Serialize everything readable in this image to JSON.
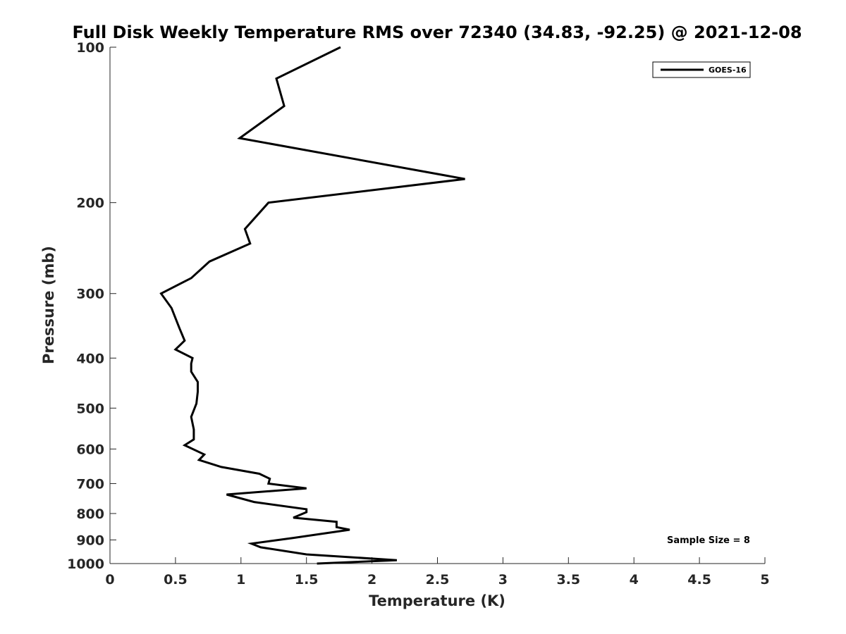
{
  "chart_data": {
    "type": "line",
    "title": "Full Disk Weekly Temperature RMS over 72340 (34.83, -92.25) @ 2021-12-08",
    "xlabel": "Temperature (K)",
    "ylabel": "Pressure (mb)",
    "xlim": [
      0,
      5
    ],
    "ylim": [
      1000,
      100
    ],
    "yscale": "log",
    "y_reversed": true,
    "x_ticks": [
      0,
      0.5,
      1,
      1.5,
      2,
      2.5,
      3,
      3.5,
      4,
      4.5,
      5
    ],
    "x_tick_labels": [
      "0",
      "0.5",
      "1",
      "1.5",
      "2",
      "2.5",
      "3",
      "3.5",
      "4",
      "4.5",
      "5"
    ],
    "y_ticks": [
      100,
      200,
      300,
      400,
      500,
      600,
      700,
      800,
      900,
      1000
    ],
    "y_tick_labels": [
      "100",
      "200",
      "300",
      "400",
      "500",
      "600",
      "700",
      "800",
      "900",
      "1000"
    ],
    "grid": false,
    "legend_position": "top-right",
    "series": [
      {
        "name": "GOES-16",
        "color": "#000000",
        "x": [
          1.58,
          2.19,
          1.5,
          1.15,
          1.08,
          1.4,
          1.83,
          1.73,
          1.73,
          1.4,
          1.5,
          1.5,
          1.1,
          0.89,
          1.5,
          1.21,
          1.22,
          1.14,
          0.85,
          0.68,
          0.72,
          0.57,
          0.64,
          0.64,
          0.62,
          0.66,
          0.67,
          0.67,
          0.62,
          0.62,
          0.63,
          0.5,
          0.57,
          0.53,
          0.47,
          0.39,
          0.62,
          0.76,
          1.07,
          1.03,
          1.21,
          2.71,
          0.99,
          1.33,
          1.27,
          1.76
        ],
        "y": [
          1000,
          985,
          960,
          930,
          915,
          892,
          860,
          850,
          830,
          815,
          795,
          785,
          760,
          735,
          715,
          700,
          685,
          670,
          650,
          630,
          615,
          590,
          575,
          550,
          520,
          490,
          465,
          445,
          425,
          410,
          400,
          385,
          370,
          350,
          320,
          300,
          280,
          260,
          240,
          225,
          200,
          180,
          150,
          130,
          115,
          100
        ]
      }
    ],
    "annotations": [
      "Sample Size = 8"
    ]
  }
}
